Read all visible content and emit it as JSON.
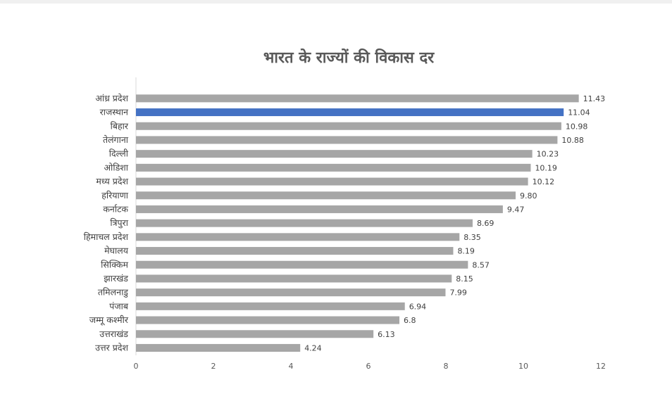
{
  "chart_data": {
    "type": "bar",
    "orientation": "horizontal",
    "title": "भारत के राज्यों की विकास दर",
    "categories": [
      "आंध्र प्रदेश",
      "राजस्थान",
      "बिहार",
      "तेलंगाना",
      "दिल्ली",
      "ओडिशा",
      "मध्य प्रदेश",
      "हरियाणा",
      "कर्नाटक",
      "त्रिपुरा",
      "हिमाचल प्रदेश",
      "मेघालय",
      "सिक्किम",
      "झारखंड",
      "तमिलनाडु",
      "पंजाब",
      "जम्मू कश्मीर",
      "उत्तराखंड",
      "उत्तर प्रदेश"
    ],
    "values": [
      11.43,
      11.04,
      10.98,
      10.88,
      10.23,
      10.19,
      10.12,
      9.8,
      9.47,
      8.69,
      8.35,
      8.19,
      8.57,
      8.15,
      7.99,
      6.94,
      6.8,
      6.13,
      4.24
    ],
    "value_labels": [
      "11.43",
      "11.04",
      "10.98",
      "10.88",
      "10.23",
      "10.19",
      "10.12",
      "9.80",
      "9.47",
      "8.69",
      "8.35",
      "8.19",
      "8.57",
      "8.15",
      "7.99",
      "6.94",
      "6.8",
      "6.13",
      "4.24"
    ],
    "highlight_category": "राजस्थान",
    "xlim": [
      0,
      12
    ],
    "x_ticks": [
      "0",
      "2",
      "4",
      "6",
      "8",
      "10",
      "12"
    ],
    "grid": false,
    "legend": "none",
    "colors": {
      "bar": "#a6a6a6",
      "highlight": "#4472c4",
      "axis": "#d9d9d9"
    }
  }
}
